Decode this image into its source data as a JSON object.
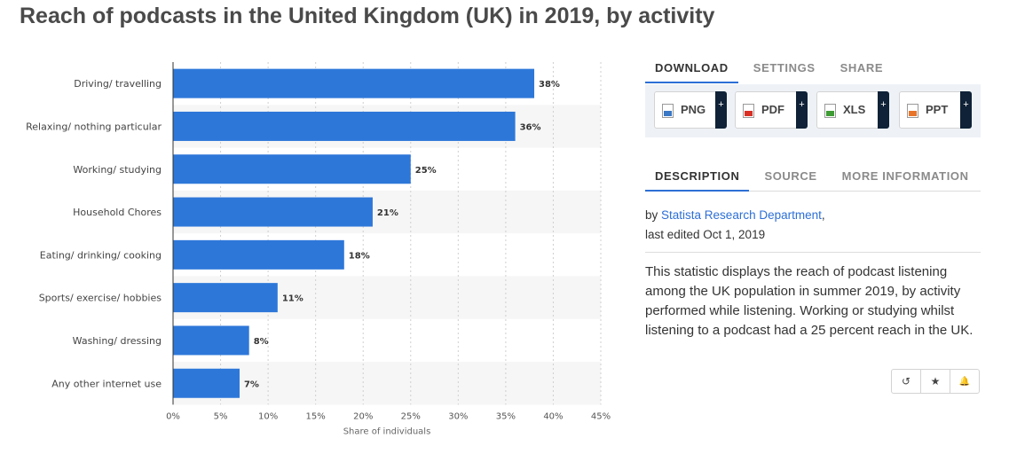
{
  "page": {
    "title": "Reach of podcasts in the United Kingdom (UK) in 2019, by activity"
  },
  "chart_data": {
    "type": "bar",
    "orientation": "horizontal",
    "title": "Reach of podcasts in the United Kingdom (UK) in 2019, by activity",
    "categories": [
      "Driving/ travelling",
      "Relaxing/ nothing particular",
      "Working/ studying",
      "Household Chores",
      "Eating/ drinking/ cooking",
      "Sports/ exercise/ hobbies",
      "Washing/ dressing",
      "Any other internet use"
    ],
    "values": [
      38,
      36,
      25,
      21,
      18,
      11,
      8,
      7
    ],
    "value_labels": [
      "38%",
      "36%",
      "25%",
      "21%",
      "18%",
      "11%",
      "8%",
      "7%"
    ],
    "xlabel": "Share of individuals",
    "xlim": [
      0,
      45
    ],
    "xticks": [
      0,
      5,
      10,
      15,
      20,
      25,
      30,
      35,
      40,
      45
    ],
    "xtick_labels": [
      "0%",
      "5%",
      "10%",
      "15%",
      "20%",
      "25%",
      "30%",
      "35%",
      "40%",
      "45%"
    ],
    "bar_color": "#2d77d9",
    "grid": true
  },
  "sidebar": {
    "top_tabs": [
      "DOWNLOAD",
      "SETTINGS",
      "SHARE"
    ],
    "downloads": [
      {
        "label": "PNG",
        "plus": "+",
        "icon": "png-file-icon",
        "color": "#3a77c4"
      },
      {
        "label": "PDF",
        "plus": "+",
        "icon": "pdf-file-icon",
        "color": "#d93025"
      },
      {
        "label": "XLS",
        "plus": "+",
        "icon": "xls-file-icon",
        "color": "#3f9c35"
      },
      {
        "label": "PPT",
        "plus": "+",
        "icon": "ppt-file-icon",
        "color": "#e8742a"
      }
    ],
    "info_tabs": [
      "DESCRIPTION",
      "SOURCE",
      "MORE INFORMATION"
    ],
    "author_prefix": "by",
    "author": "Statista Research Department",
    "author_suffix": ",",
    "last_edited": "last edited Oct 1, 2019",
    "description": "This statistic displays the reach of podcast listening among the UK population in summer 2019, by activity performed while listening. Working or studying whilst listening to a podcast had a 25 percent reach in the UK.",
    "actions": [
      {
        "icon": "history-icon",
        "glyph": "↺"
      },
      {
        "icon": "star-icon",
        "glyph": "★"
      },
      {
        "icon": "bell-icon",
        "glyph": "🔔"
      }
    ]
  },
  "colors": {
    "accent": "#2d6fd6",
    "dark_button": "#0f2237",
    "panel_bg": "#eef2f7"
  }
}
